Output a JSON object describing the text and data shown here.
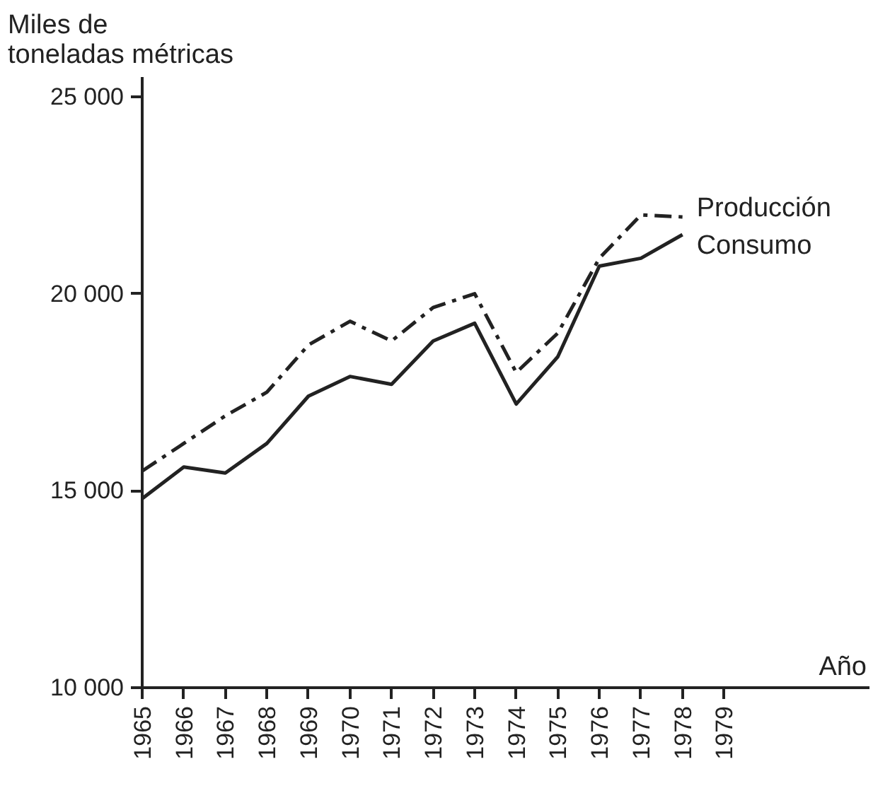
{
  "chart_data": {
    "type": "line",
    "ylabel": "Miles de\ntoneladas métricas",
    "xlabel": "Año",
    "x": [
      1965,
      1966,
      1967,
      1968,
      1969,
      1970,
      1971,
      1972,
      1973,
      1974,
      1975,
      1976,
      1977,
      1978
    ],
    "series": [
      {
        "name": "Producción",
        "color": "#222222",
        "line_style": "dashdot",
        "values": [
          15500,
          16200,
          16900,
          17500,
          18700,
          19300,
          18800,
          19650,
          20000,
          18000,
          19000,
          20900,
          22000,
          21950
        ]
      },
      {
        "name": "Consumo",
        "color": "#222222",
        "line_style": "solid",
        "values": [
          14800,
          15600,
          15450,
          16200,
          17400,
          17900,
          17700,
          18800,
          19250,
          17200,
          18400,
          20700,
          20900,
          21500
        ]
      }
    ],
    "xlim": [
      1965,
      1982.5
    ],
    "ylim": [
      10000,
      25500
    ],
    "xticks": [
      1965,
      1966,
      1967,
      1968,
      1969,
      1970,
      1971,
      1972,
      1973,
      1974,
      1975,
      1976,
      1977,
      1978,
      1979
    ],
    "yticks": [
      {
        "value": 10000,
        "label": "10 000"
      },
      {
        "value": 15000,
        "label": "15 000"
      },
      {
        "value": 20000,
        "label": "20 000"
      },
      {
        "value": 25000,
        "label": "25 000"
      }
    ],
    "grid": false,
    "legend": false,
    "marker": "none"
  }
}
